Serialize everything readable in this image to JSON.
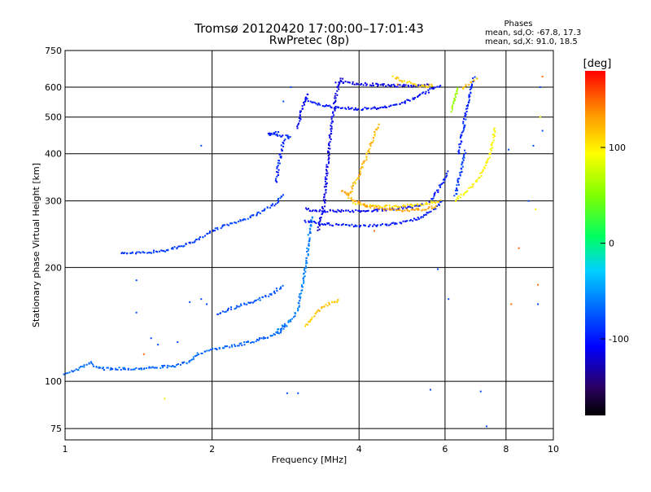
{
  "header": {
    "title": "Tromsø 20120420 17:00:00–17:01:43",
    "subtitle": "RwPretec (8p)",
    "phase_title": "Phases",
    "phase_line_o": "mean, sd,O: -67.8, 17.3",
    "phase_line_x": "mean, sd,X:  91.0, 18.5"
  },
  "chart_data": {
    "type": "scatter",
    "xlabel": "Frequency [MHz]",
    "ylabel": "Stationary phase Virtual Height [km]",
    "x_scale": "log",
    "y_scale": "log",
    "xlim": [
      1,
      10
    ],
    "ylim": [
      70,
      750
    ],
    "x_ticks": [
      1,
      2,
      4,
      6,
      8,
      10
    ],
    "x_tick_labels": [
      "1",
      "2",
      "4",
      "6",
      "8",
      "10"
    ],
    "y_ticks": [
      75,
      100,
      200,
      300,
      400,
      500,
      600,
      750
    ],
    "y_tick_labels": [
      "75",
      "100",
      "200",
      "300",
      "400",
      "500",
      "600",
      "750"
    ],
    "grid": true,
    "colorbar": {
      "label": "[deg]",
      "ticks": [
        100,
        0,
        -100
      ],
      "tick_labels": [
        "100",
        "0",
        "-100"
      ],
      "range": [
        -180,
        180
      ]
    },
    "traces": [
      {
        "phase": -70,
        "points": [
          [
            1.0,
            105
          ],
          [
            1.05,
            107
          ],
          [
            1.1,
            110
          ],
          [
            1.13,
            112
          ],
          [
            1.16,
            109
          ],
          [
            1.2,
            108
          ],
          [
            1.3,
            108
          ],
          [
            1.4,
            108
          ],
          [
            1.55,
            109
          ],
          [
            1.7,
            110
          ],
          [
            1.8,
            113
          ],
          [
            1.86,
            118
          ],
          [
            1.95,
            120
          ],
          [
            2.05,
            122
          ],
          [
            2.2,
            124
          ],
          [
            2.4,
            127
          ],
          [
            2.6,
            131
          ],
          [
            2.75,
            135
          ],
          [
            2.85,
            141
          ]
        ]
      },
      {
        "phase": -85,
        "points": [
          [
            1.3,
            219
          ],
          [
            1.4,
            218
          ],
          [
            1.5,
            220
          ],
          [
            1.6,
            222
          ],
          [
            1.7,
            226
          ],
          [
            1.8,
            232
          ],
          [
            1.9,
            240
          ],
          [
            2.0,
            250
          ],
          [
            2.2,
            262
          ],
          [
            2.4,
            272
          ],
          [
            2.55,
            282
          ],
          [
            2.7,
            295
          ],
          [
            2.8,
            315
          ]
        ]
      },
      {
        "phase": -75,
        "points": [
          [
            2.05,
            150
          ],
          [
            2.2,
            156
          ],
          [
            2.35,
            160
          ],
          [
            2.5,
            165
          ],
          [
            2.65,
            170
          ],
          [
            2.8,
            180
          ]
        ]
      },
      {
        "phase": -60,
        "points": [
          [
            2.7,
            135
          ],
          [
            2.8,
            140
          ],
          [
            2.9,
            145
          ],
          [
            3.0,
            155
          ],
          [
            3.05,
            175
          ],
          [
            3.1,
            195
          ],
          [
            3.15,
            230
          ],
          [
            3.2,
            275
          ]
        ]
      },
      {
        "phase": -95,
        "points": [
          [
            2.7,
            335
          ],
          [
            2.75,
            385
          ],
          [
            2.8,
            430
          ],
          [
            2.9,
            445
          ],
          [
            2.6,
            450
          ],
          [
            2.75,
            455
          ]
        ]
      },
      {
        "phase": -100,
        "points": [
          [
            3.1,
            265
          ],
          [
            3.3,
            262
          ],
          [
            3.5,
            260
          ],
          [
            3.8,
            258
          ],
          [
            4.2,
            258
          ],
          [
            4.6,
            260
          ],
          [
            5.0,
            265
          ],
          [
            5.4,
            272
          ],
          [
            5.7,
            285
          ],
          [
            5.9,
            300
          ]
        ]
      },
      {
        "phase": -110,
        "points": [
          [
            3.1,
            285
          ],
          [
            3.2,
            283
          ],
          [
            3.5,
            282
          ],
          [
            3.8,
            282
          ],
          [
            4.2,
            283
          ],
          [
            4.6,
            285
          ],
          [
            5.0,
            288
          ],
          [
            5.4,
            293
          ]
        ]
      },
      {
        "phase": -115,
        "points": [
          [
            3.3,
            250
          ],
          [
            3.4,
            300
          ],
          [
            3.45,
            380
          ],
          [
            3.5,
            450
          ],
          [
            3.55,
            520
          ],
          [
            3.6,
            580
          ],
          [
            3.65,
            620
          ],
          [
            3.7,
            640
          ]
        ]
      },
      {
        "phase": -105,
        "points": [
          [
            3.1,
            560
          ],
          [
            3.3,
            540
          ],
          [
            3.6,
            530
          ],
          [
            4.0,
            525
          ],
          [
            4.4,
            528
          ],
          [
            4.8,
            540
          ],
          [
            5.2,
            560
          ],
          [
            5.6,
            590
          ],
          [
            5.9,
            610
          ]
        ]
      },
      {
        "phase": -115,
        "points": [
          [
            3.6,
            620
          ],
          [
            4.0,
            612
          ],
          [
            4.4,
            608
          ],
          [
            4.8,
            605
          ],
          [
            5.2,
            605
          ],
          [
            5.6,
            610
          ]
        ]
      },
      {
        "phase": -110,
        "points": [
          [
            3.0,
            470
          ],
          [
            3.05,
            520
          ],
          [
            3.1,
            550
          ],
          [
            3.15,
            580
          ]
        ]
      },
      {
        "phase": 120,
        "points": [
          [
            3.8,
            310
          ],
          [
            3.9,
            330
          ],
          [
            4.0,
            350
          ],
          [
            4.1,
            380
          ],
          [
            4.2,
            410
          ],
          [
            4.3,
            450
          ],
          [
            4.4,
            480
          ]
        ]
      },
      {
        "phase": 105,
        "points": [
          [
            3.9,
            295
          ],
          [
            4.1,
            292
          ],
          [
            4.4,
            290
          ],
          [
            4.8,
            290
          ],
          [
            5.2,
            292
          ],
          [
            5.6,
            296
          ],
          [
            5.9,
            300
          ]
        ]
      },
      {
        "phase": 130,
        "points": [
          [
            3.7,
            320
          ],
          [
            3.9,
            300
          ],
          [
            4.2,
            290
          ],
          [
            4.6,
            285
          ],
          [
            5.0,
            283
          ],
          [
            5.4,
            285
          ],
          [
            5.8,
            290
          ]
        ]
      },
      {
        "phase": 110,
        "points": [
          [
            4.7,
            640
          ],
          [
            4.9,
            625
          ],
          [
            5.2,
            610
          ],
          [
            5.5,
            600
          ],
          [
            5.7,
            610
          ]
        ]
      },
      {
        "phase": 115,
        "points": [
          [
            3.1,
            140
          ],
          [
            3.25,
            150
          ],
          [
            3.4,
            158
          ],
          [
            3.55,
            162
          ],
          [
            3.65,
            165
          ]
        ]
      },
      {
        "phase": -95,
        "points": [
          [
            6.4,
            400
          ],
          [
            6.5,
            450
          ],
          [
            6.6,
            500
          ],
          [
            6.7,
            550
          ],
          [
            6.8,
            600
          ],
          [
            6.9,
            640
          ]
        ]
      },
      {
        "phase": -85,
        "points": [
          [
            6.3,
            310
          ],
          [
            6.4,
            340
          ],
          [
            6.5,
            370
          ],
          [
            6.6,
            410
          ]
        ]
      },
      {
        "phase": 95,
        "points": [
          [
            6.3,
            300
          ],
          [
            6.5,
            310
          ],
          [
            6.7,
            320
          ],
          [
            6.9,
            335
          ],
          [
            7.1,
            350
          ],
          [
            7.3,
            380
          ],
          [
            7.5,
            420
          ],
          [
            7.6,
            470
          ]
        ]
      },
      {
        "phase": 120,
        "points": [
          [
            6.5,
            595
          ],
          [
            6.7,
            610
          ],
          [
            6.9,
            625
          ],
          [
            7.0,
            640
          ]
        ]
      },
      {
        "phase": 60,
        "points": [
          [
            6.2,
            520
          ],
          [
            6.3,
            560
          ],
          [
            6.4,
            600
          ]
        ]
      },
      {
        "phase": -100,
        "points": [
          [
            5.6,
            300
          ],
          [
            5.8,
            320
          ],
          [
            6.0,
            345
          ],
          [
            6.1,
            360
          ]
        ]
      }
    ],
    "scatter": [
      {
        "phase": -80,
        "points": [
          [
            1.5,
            130
          ],
          [
            1.55,
            125
          ],
          [
            1.7,
            127
          ],
          [
            1.8,
            162
          ],
          [
            1.9,
            165
          ],
          [
            1.95,
            160
          ],
          [
            2.85,
            93
          ],
          [
            3.0,
            93
          ],
          [
            1.4,
            185
          ],
          [
            1.4,
            152
          ],
          [
            5.6,
            95
          ],
          [
            7.1,
            94
          ],
          [
            5.8,
            198
          ],
          [
            6.1,
            165
          ],
          [
            7.3,
            76
          ],
          [
            9.3,
            160
          ],
          [
            9.4,
            600
          ],
          [
            9.5,
            460
          ],
          [
            8.9,
            300
          ],
          [
            9.1,
            420
          ],
          [
            8.1,
            410
          ],
          [
            2.8,
            550
          ],
          [
            2.9,
            600
          ],
          [
            1.9,
            420
          ]
        ]
      },
      {
        "phase": 150,
        "points": [
          [
            1.45,
            118
          ],
          [
            8.2,
            160
          ],
          [
            9.3,
            180
          ],
          [
            9.5,
            640
          ],
          [
            8.5,
            225
          ],
          [
            4.3,
            250
          ],
          [
            4.8,
            610
          ]
        ]
      },
      {
        "phase": 100,
        "points": [
          [
            1.6,
            90
          ],
          [
            9.2,
            285
          ],
          [
            9.4,
            500
          ]
        ]
      }
    ]
  }
}
